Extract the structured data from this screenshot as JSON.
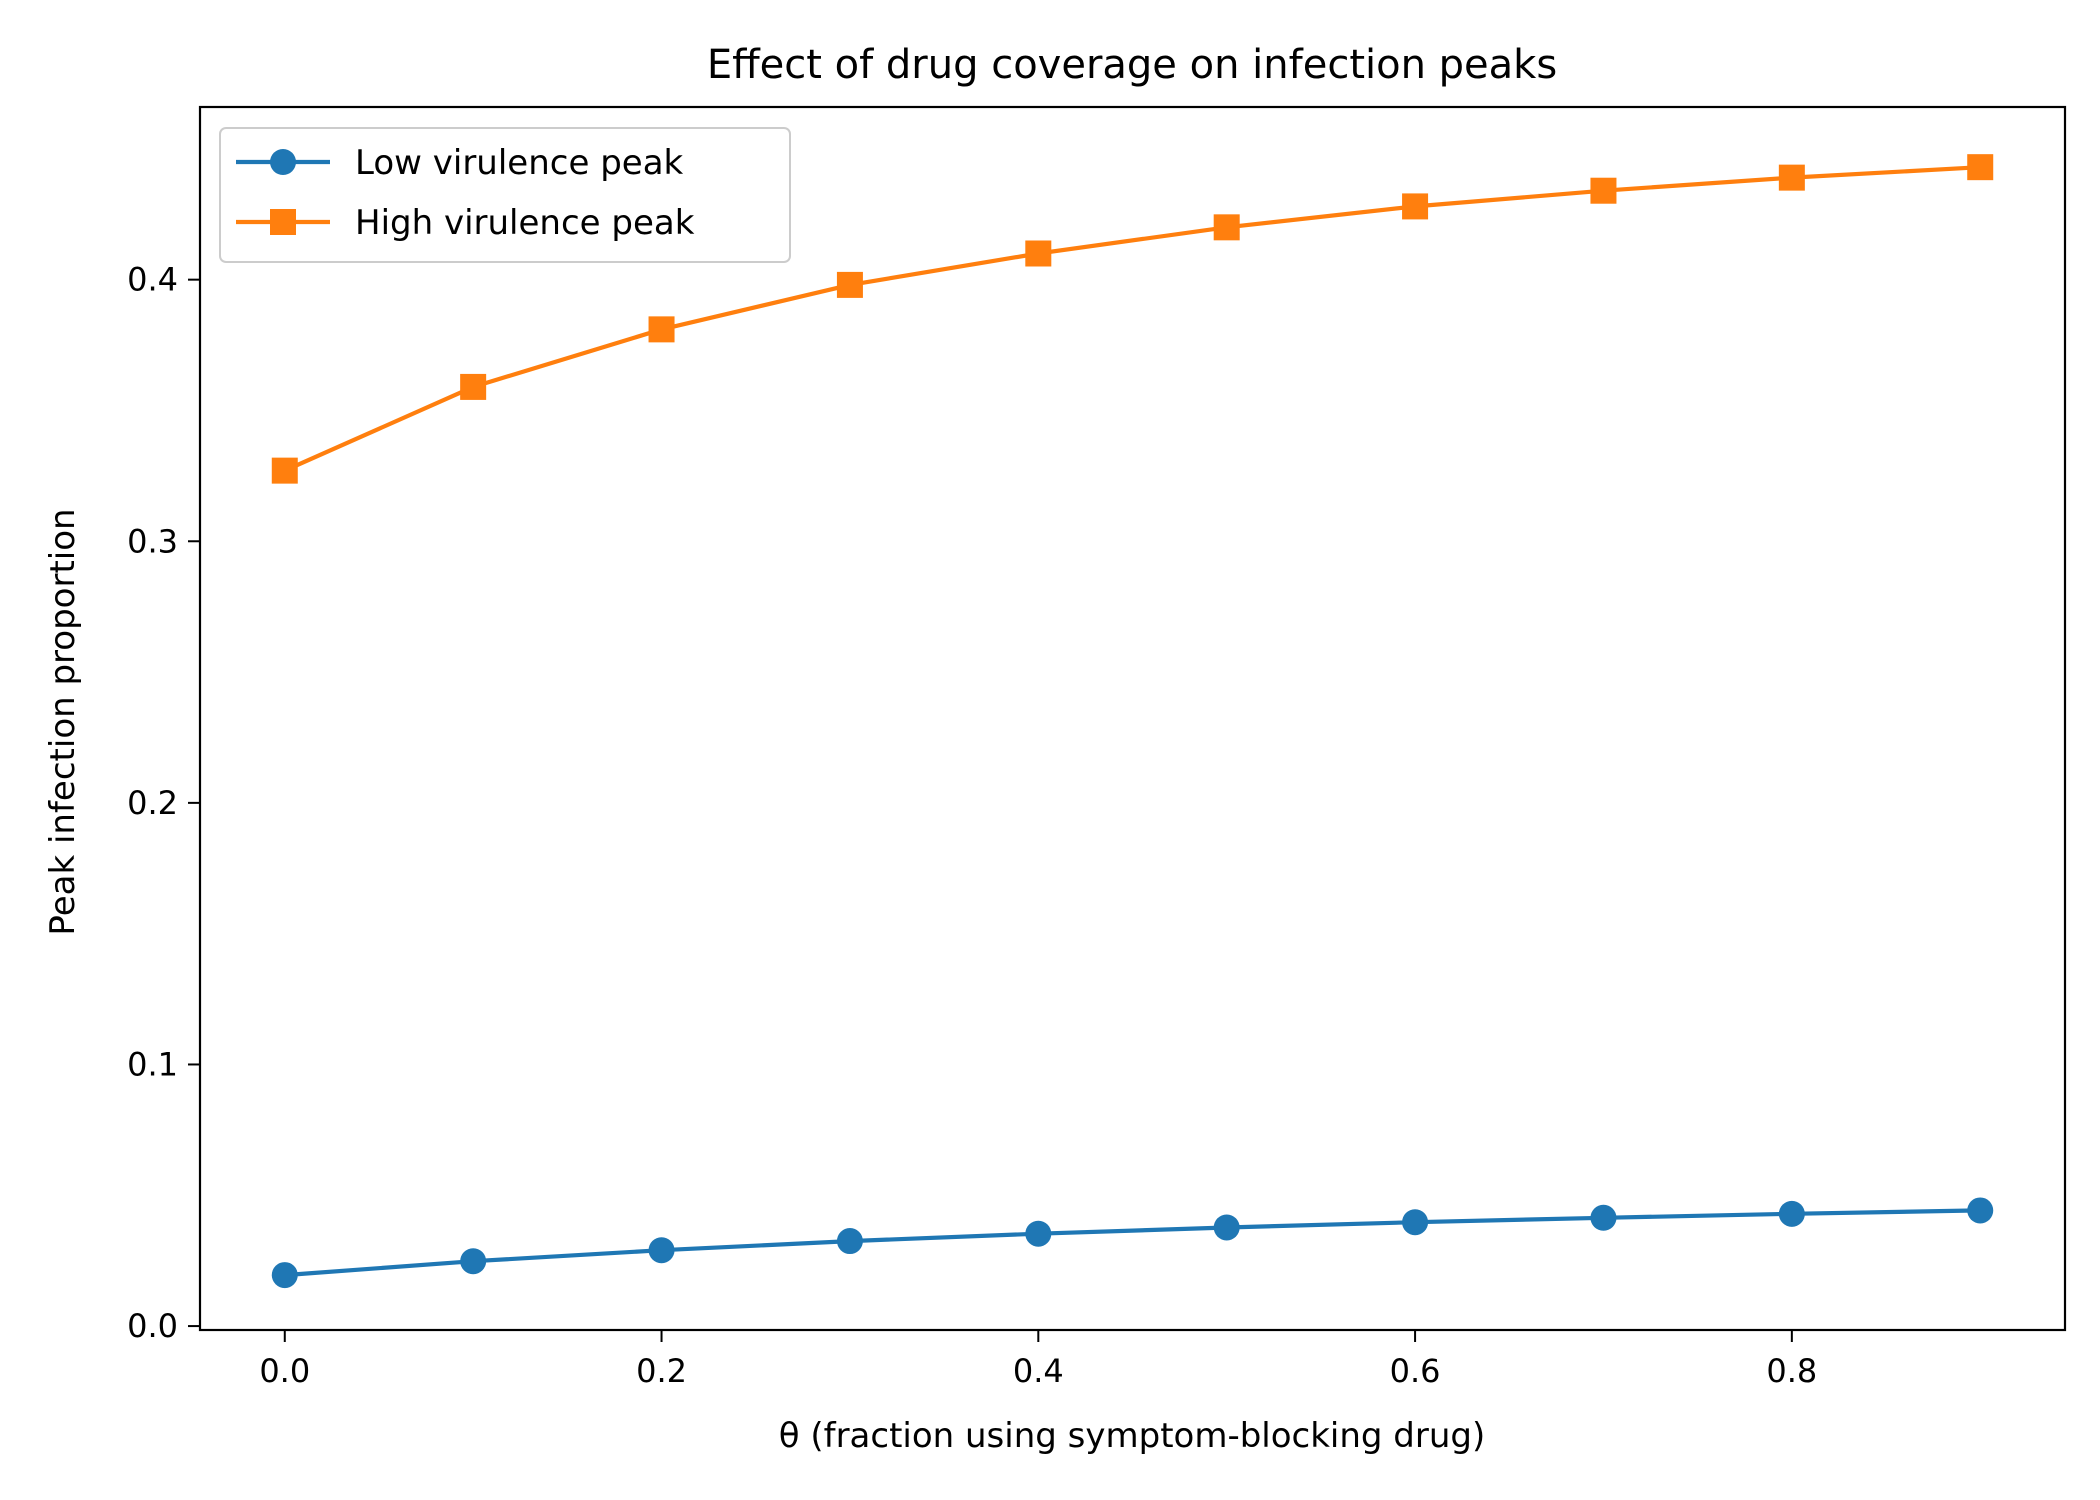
{
  "chart_data": {
    "type": "line",
    "title": "Effect of drug coverage on infection peaks",
    "xlabel": "θ (fraction using symptom-blocking drug)",
    "ylabel": "Peak infection proportion",
    "xlim": [
      -0.045,
      0.945
    ],
    "ylim": [
      -0.0015,
      0.466
    ],
    "x_ticks": [
      0.0,
      0.2,
      0.4,
      0.6,
      0.8
    ],
    "x_tick_labels": [
      "0.0",
      "0.2",
      "0.4",
      "0.6",
      "0.8"
    ],
    "y_ticks": [
      0.0,
      0.1,
      0.2,
      0.3,
      0.4
    ],
    "y_tick_labels": [
      "0.0",
      "0.1",
      "0.2",
      "0.3",
      "0.4"
    ],
    "grid": false,
    "legend_position": "top-left",
    "x": [
      0.0,
      0.1,
      0.2,
      0.3,
      0.4,
      0.5,
      0.6,
      0.7,
      0.8,
      0.9
    ],
    "series": [
      {
        "name": "Low virulence peak",
        "color": "#1f77b4",
        "marker": "circle",
        "values": [
          0.0195,
          0.0248,
          0.029,
          0.0325,
          0.0353,
          0.0377,
          0.0397,
          0.0414,
          0.0429,
          0.0442
        ]
      },
      {
        "name": "High virulence peak",
        "color": "#ff7f0e",
        "marker": "square",
        "values": [
          0.327,
          0.359,
          0.381,
          0.398,
          0.41,
          0.42,
          0.428,
          0.434,
          0.439,
          0.443
        ]
      }
    ]
  }
}
